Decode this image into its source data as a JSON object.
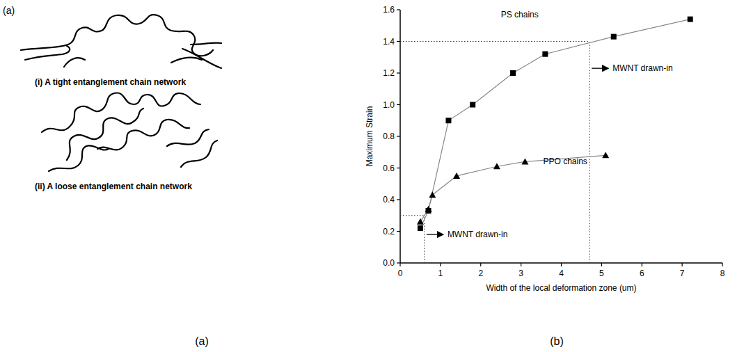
{
  "figure": {
    "top_letter": "(a)",
    "captions": [
      "(a)",
      "(b)"
    ]
  },
  "panel_a": {
    "items": [
      {
        "label": "(i) A tight entanglement chain network"
      },
      {
        "label": "(ii) A loose entanglement chain network"
      }
    ]
  },
  "chart_data": {
    "type": "line",
    "x_label": "Width of the local deformation zone (um)",
    "y_label": "Maximum Strain",
    "xlim": [
      0,
      8
    ],
    "xticks": [
      0,
      1,
      2,
      3,
      4,
      5,
      6,
      7,
      8
    ],
    "ylim": [
      0,
      1.6
    ],
    "yticks": [
      {
        "value": 0,
        "label": "0.0"
      },
      0.2,
      0.4,
      0.6,
      0.8,
      {
        "value": 1,
        "label": "1.0"
      },
      1.2,
      1.4,
      1.6
    ],
    "grid": false,
    "series": [
      {
        "name": "PS chains",
        "color": "#000000",
        "marker": "square",
        "line_style": "solid",
        "x": [
          0.5,
          0.7,
          1.2,
          1.8,
          2.8,
          3.6,
          5.3,
          7.2
        ],
        "values": [
          0.22,
          0.33,
          0.9,
          1.0,
          1.2,
          1.32,
          1.43,
          1.54
        ]
      },
      {
        "name": "PPO chains",
        "color": "#000000",
        "marker": "triangle",
        "line_style": "solid",
        "x": [
          0.5,
          0.7,
          0.8,
          1.4,
          2.4,
          3.1,
          5.1
        ],
        "values": [
          0.26,
          0.34,
          0.43,
          0.55,
          0.61,
          0.64,
          0.68
        ]
      }
    ],
    "reference_lines": [
      {
        "x": 4.7,
        "y": 1.4
      },
      {
        "x": 0.6,
        "y": 0.3
      }
    ],
    "annotations": [
      {
        "text": "PS chains",
        "x": 2.5,
        "y": 1.57
      },
      {
        "text": "PPO chains",
        "x": 3.55,
        "y": 0.64
      },
      {
        "text": "MWNT drawn-in",
        "x": 4.72,
        "y": 1.23,
        "arrow": true
      },
      {
        "text": "MWNT drawn-in",
        "x": 0.62,
        "y": 0.18,
        "arrow": true
      }
    ]
  }
}
